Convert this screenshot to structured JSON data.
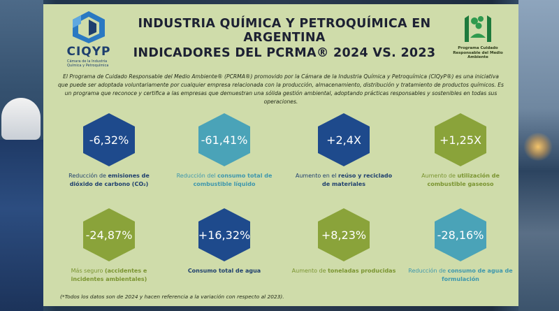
{
  "header": {
    "title_line1": "INDUSTRIA QUÍMICA Y PETROQUÍMICA EN ARGENTINA",
    "title_line2": "INDICADORES DEL PCRMA® 2024 VS. 2023"
  },
  "logos": {
    "ciqyp_name": "CIQYP",
    "ciqyp_subtitle": "Cámara de la Industria Química y Petroquímica",
    "pcrma_text": "Programa Cuidado Responsable del Medio Ambiente"
  },
  "intro": "El Programa de Cuidado Responsable del Medio Ambiente® (PCRMA®) promovido por la Cámara de la Industria Química y Petroquímica (CIQyP®) es una iniciativa que puede ser adoptada voluntariamente por cualquier empresa relacionada con la producción, almacenamiento, distribución y tratamiento de productos químicos. Es un programa que reconoce y certifica a las empresas que demuestran una sólida gestión ambiental, adoptando prácticas responsables y sostenibles en todas sus operaciones.",
  "indicators": [
    {
      "value": "-6,32%",
      "label_a": "Reducción de ",
      "label_b": "emisiones de dióxido de carbono (CO₂)",
      "color": "#1e4a8c"
    },
    {
      "value": "-61,41%",
      "label_a": "Reducción del ",
      "label_b": "consumo total de combustible líquido",
      "color": "#4aa3b8"
    },
    {
      "value": "+2,4X",
      "label_a": "Aumento en el ",
      "label_b": "reúso y reciclado de materiales",
      "color": "#1e4a8c"
    },
    {
      "value": "+1,25X",
      "label_a": "Aumento de ",
      "label_b": "utilización de combustible gaseoso",
      "color": "#8aa33a"
    },
    {
      "value": "-24,87%",
      "label_a": "Más seguro ",
      "label_b": "(accidentes e incidentes ambientales)",
      "color": "#8aa33a"
    },
    {
      "value": "+16,32%",
      "label_a": "",
      "label_b": "Consumo total de agua",
      "color": "#1e4a8c"
    },
    {
      "value": "+8,23%",
      "label_a": "Aumento de ",
      "label_b": "toneladas producidas",
      "color": "#8aa33a"
    },
    {
      "value": "-28,16%",
      "label_a": "Reducción de ",
      "label_b": "consumo de agua de formulación",
      "color": "#4aa3b8"
    }
  ],
  "footnote": "(*Todos los datos son de 2024 y hacen referencia a la variación con respecto al 2023)."
}
